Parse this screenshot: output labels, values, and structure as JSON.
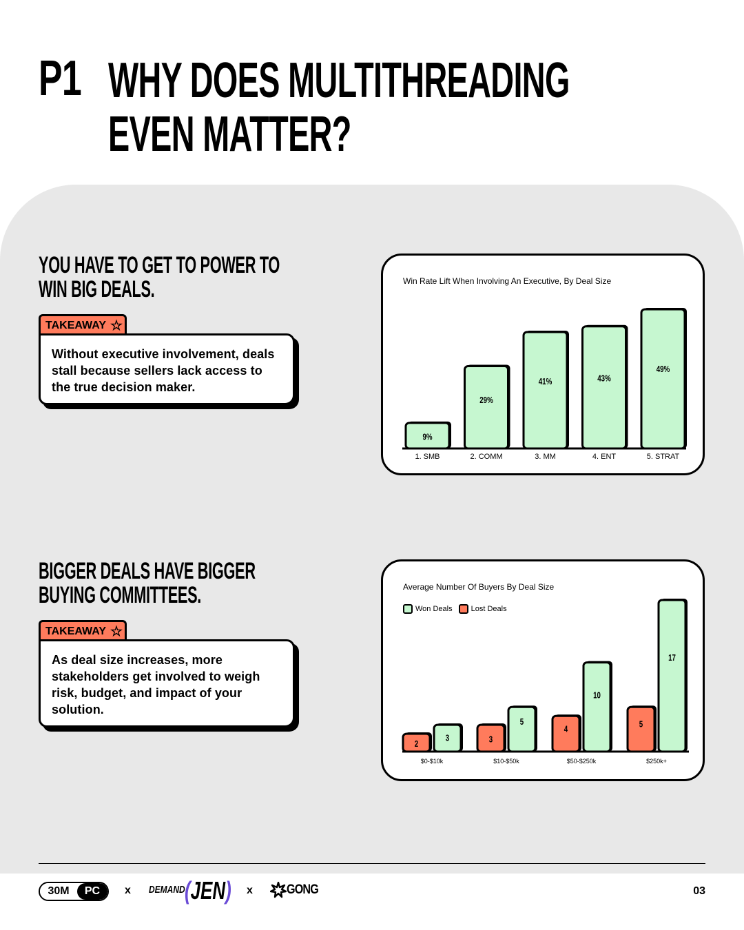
{
  "header": {
    "number": "P1",
    "title_line1": "WHY DOES MULTITHREADING",
    "title_line2": "EVEN MATTER?"
  },
  "section1": {
    "heading_line1": "YOU HAVE TO GET TO POWER TO",
    "heading_line2": "WIN BIG DEALS.",
    "takeaway_label": "TAKEAWAY",
    "takeaway_text": "Without executive involvement, deals stall because sellers lack access to the true decision maker."
  },
  "section2": {
    "heading_line1": "BIGGER DEALS HAVE BIGGER",
    "heading_line2": "BUYING COMMITTEES.",
    "takeaway_label": "TAKEAWAY",
    "takeaway_text": "As deal size increases, more stakeholders get involved to weigh risk, budget, and impact of your solution."
  },
  "colors": {
    "won": "#c6f7d0",
    "lost": "#ff7b5c",
    "panel": "#e8e8e8",
    "accent_purple": "#6a4bd6"
  },
  "chart_data": [
    {
      "type": "bar",
      "title": "Win Rate Lift When Involving An Executive, By Deal Size",
      "categories": [
        "1. SMB",
        "2. COMM",
        "3. MM",
        "4. ENT",
        "5. STRAT"
      ],
      "values": [
        9,
        29,
        41,
        43,
        49
      ],
      "value_labels": [
        "9%",
        "29%",
        "41%",
        "43%",
        "49%"
      ],
      "ylim": [
        0,
        49
      ],
      "grid": false
    },
    {
      "type": "bar",
      "title": "Average Number Of Buyers By Deal Size",
      "categories": [
        "$0-$10k",
        "$10-$50k",
        "$50-$250k",
        "$250k+"
      ],
      "series": [
        {
          "name": "Lost Deals",
          "values": [
            2,
            3,
            4,
            5
          ]
        },
        {
          "name": "Won Deals",
          "values": [
            3,
            5,
            10,
            17
          ]
        }
      ],
      "legend_order": [
        "Won Deals",
        "Lost Deals"
      ],
      "legend_position": "top-left",
      "ylim": [
        0,
        17
      ],
      "grid": false
    }
  ],
  "footer": {
    "brand1_a": "30M",
    "brand1_b": "PC",
    "sep1": "x",
    "brand2_a": "DEMAND",
    "brand2_b": "JEN",
    "sep2": "x",
    "brand3": "GONG",
    "page": "03"
  }
}
